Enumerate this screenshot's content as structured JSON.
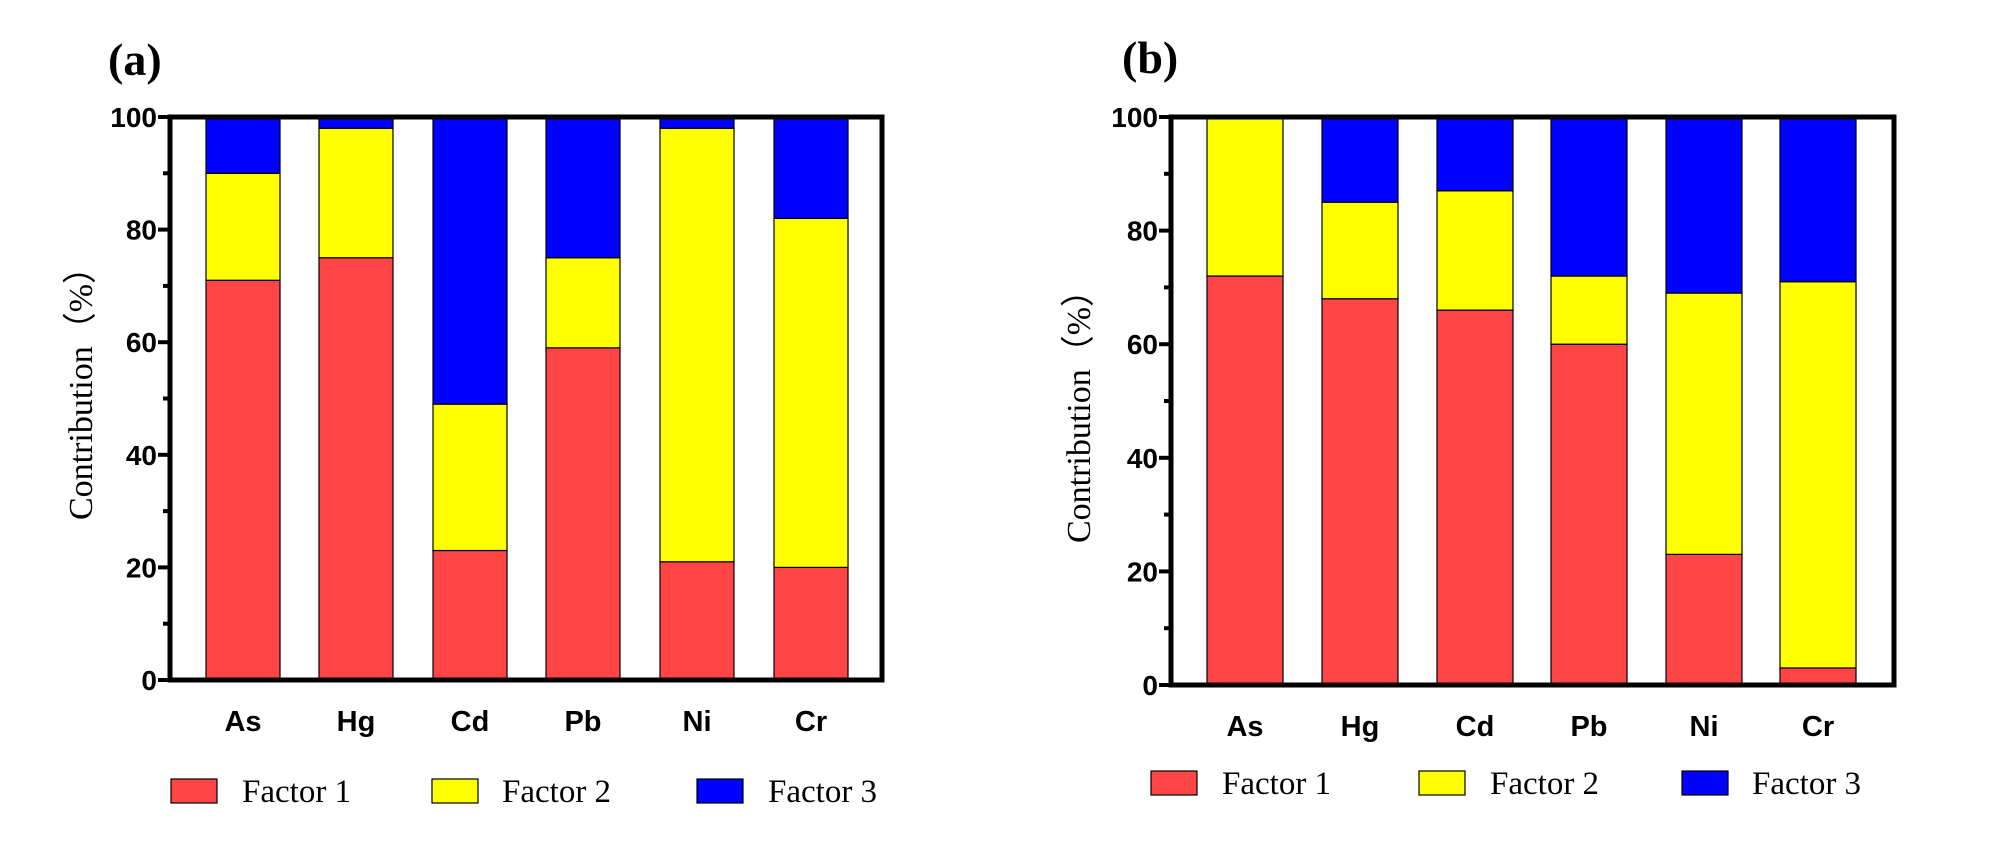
{
  "chart_data": [
    {
      "type": "bar",
      "stacked": true,
      "panel_label": "(a)",
      "ylabel": "Contribution（%）",
      "ylim": [
        0,
        100
      ],
      "yticks": [
        "0",
        "20",
        "40",
        "60",
        "80",
        "100"
      ],
      "categories": [
        "As",
        "Hg",
        "Cd",
        "Pb",
        "Ni",
        "Cr"
      ],
      "series": [
        {
          "name": "Factor 1",
          "color": "#ff4545",
          "values": [
            71,
            75,
            23,
            59,
            21,
            20
          ]
        },
        {
          "name": "Factor 2",
          "color": "#ffff00",
          "values": [
            19,
            23,
            26,
            16,
            77,
            62
          ]
        },
        {
          "name": "Factor 3",
          "color": "#0000ff",
          "values": [
            10,
            2,
            51,
            25,
            2,
            18
          ]
        }
      ],
      "legend_position": "bottom"
    },
    {
      "type": "bar",
      "stacked": true,
      "panel_label": "(b)",
      "ylabel": "Contribution（%）",
      "ylim": [
        0,
        100
      ],
      "yticks": [
        "0",
        "20",
        "40",
        "60",
        "80",
        "100"
      ],
      "categories": [
        "As",
        "Hg",
        "Cd",
        "Pb",
        "Ni",
        "Cr"
      ],
      "series": [
        {
          "name": "Factor 1",
          "color": "#ff4545",
          "values": [
            72,
            68,
            66,
            60,
            23,
            3
          ]
        },
        {
          "name": "Factor 2",
          "color": "#ffff00",
          "values": [
            28,
            17,
            21,
            12,
            46,
            68
          ]
        },
        {
          "name": "Factor 3",
          "color": "#0000ff",
          "values": [
            0,
            15,
            13,
            28,
            31,
            29
          ]
        }
      ],
      "legend_position": "bottom"
    }
  ]
}
